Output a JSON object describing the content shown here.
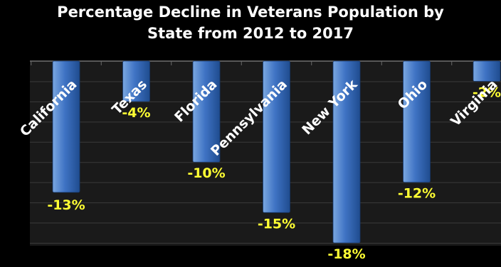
{
  "chart_data": {
    "type": "bar",
    "title_lines": [
      "Percentage Decline in Veterans Population by",
      "State from 2012 to 2017"
    ],
    "categories": [
      "California",
      "Texas",
      "Florida",
      "Pennsylvania",
      "New York",
      "Ohio",
      "Virginia"
    ],
    "values": [
      -13,
      -4,
      -10,
      -15,
      -18,
      -12,
      -2
    ],
    "data_labels": [
      "-13%",
      "-4%",
      "-10%",
      "-15%",
      "-18%",
      "-12%",
      "-2%"
    ],
    "ylim": [
      -18,
      0
    ],
    "grid": true,
    "legend": "none",
    "colors": {
      "background": "#000000",
      "plot_area": "#1a1a1a",
      "bar_light": "#7aa7e0",
      "bar_mid": "#3f73c4",
      "bar_dark": "#1f4c8f",
      "category_label": "#ffffff",
      "data_label": "#ffff33",
      "gridline": "#3a3a3a"
    }
  }
}
